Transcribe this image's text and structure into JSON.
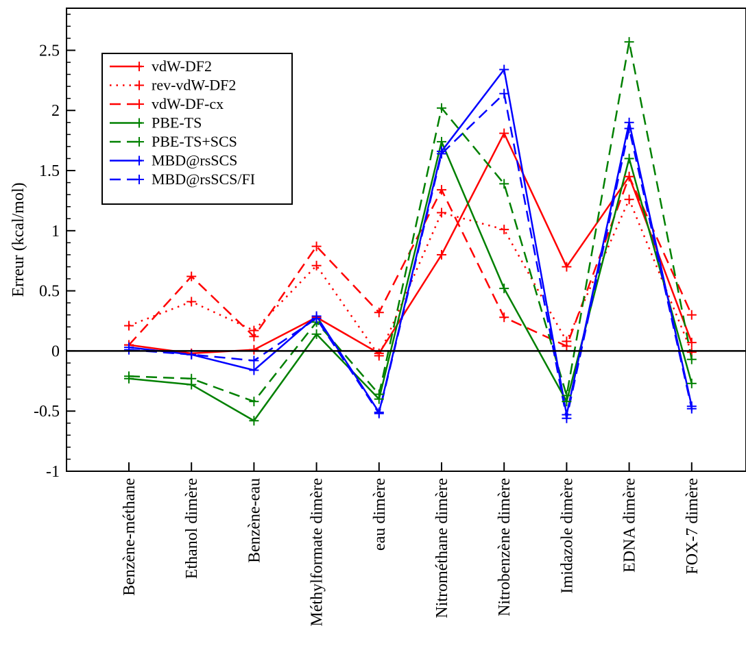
{
  "chart_data": {
    "type": "line",
    "ylabel": "Erreur (kcal/mol)",
    "xlabel": "",
    "ylim": [
      -1,
      2.85
    ],
    "yticks": [
      -1,
      -0.5,
      0,
      0.5,
      1,
      1.5,
      2,
      2.5
    ],
    "ytick_labels": [
      "-1",
      "-0.5",
      "0",
      "0.5",
      "1",
      "1.5",
      "2",
      "2.5"
    ],
    "categories": [
      "Benzène-méthane",
      "Ethanol dimère",
      "Benzène-eau",
      "Méthylformate dimère",
      "eau dimère",
      "Nitrométhane dimère",
      "Nitrobenzène dimère",
      "Imidazole dimère",
      "EDNA dimère",
      "FOX-7 dimère"
    ],
    "zero_line": true,
    "grid": false,
    "legend_position": "top-left",
    "series": [
      {
        "name": "vdW-DF2",
        "color": "#ff0000",
        "dash": "solid",
        "values": [
          0.05,
          -0.02,
          0.01,
          0.28,
          -0.02,
          0.8,
          1.81,
          0.7,
          1.45,
          0.07
        ]
      },
      {
        "name": "rev-vdW-DF2",
        "color": "#ff0000",
        "dash": "dotted",
        "values": [
          0.21,
          0.41,
          0.17,
          0.71,
          -0.04,
          1.15,
          1.01,
          0.08,
          1.26,
          -0.01
        ]
      },
      {
        "name": "vdW-DF-cx",
        "color": "#ff0000",
        "dash": "dashed",
        "values": [
          0.05,
          0.62,
          0.12,
          0.87,
          0.32,
          1.34,
          0.28,
          0.04,
          1.45,
          0.3
        ]
      },
      {
        "name": "PBE-TS",
        "color": "#008000",
        "dash": "solid",
        "values": [
          -0.23,
          -0.28,
          -0.58,
          0.14,
          -0.4,
          1.74,
          0.52,
          -0.42,
          1.6,
          -0.27
        ]
      },
      {
        "name": "PBE-TS+SCS",
        "color": "#008000",
        "dash": "dashed",
        "values": [
          -0.21,
          -0.23,
          -0.42,
          0.24,
          -0.36,
          2.02,
          1.39,
          -0.37,
          2.57,
          -0.07
        ]
      },
      {
        "name": "MBD@rsSCS",
        "color": "#0000ff",
        "dash": "solid",
        "values": [
          0.03,
          -0.03,
          -0.16,
          0.29,
          -0.51,
          1.66,
          2.34,
          -0.53,
          1.9,
          -0.46
        ]
      },
      {
        "name": "MBD@rsSCS/FI",
        "color": "#0000ff",
        "dash": "dashed",
        "values": [
          0.01,
          -0.03,
          -0.08,
          0.27,
          -0.52,
          1.64,
          2.14,
          -0.56,
          1.85,
          -0.48
        ]
      }
    ]
  }
}
